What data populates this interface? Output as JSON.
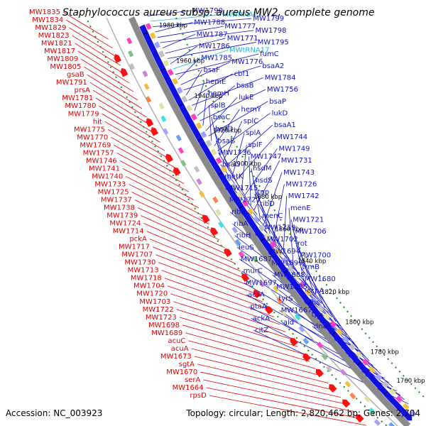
{
  "title": "Staphylococcus aureus subsp. aureus MW2, complete genome",
  "footer": {
    "accession": "Accession: NC_003923",
    "summary": "Topology: circular; Length: 2,820,462 bp; Genes: 2,704"
  },
  "colors": {
    "reverse_label": "#e00000",
    "forward_label": "#1010c8",
    "rna_label": "#20b4e0",
    "backbone": "#808080",
    "forward_arrow": "#1010e0",
    "reverse_arrow": "#ff1010",
    "dotted_ring": "#1a8a1a"
  },
  "ticks": [
    "1980 kbp",
    "1960 kbp",
    "1940 kbp",
    "1920 kbp",
    "1900 kbp",
    "1880 kbp",
    "1860 kbp",
    "1840 kbp",
    "1820 kbp",
    "1800 kbp",
    "1780 kbp",
    "1760 kbp"
  ],
  "left_labels": [
    "MW1835",
    "MW1834",
    "MW1829",
    "MW1823",
    "MW1821",
    "MW1817",
    "MW1809",
    "MW1805",
    "gsaB",
    "MW1791",
    "prsA",
    "MW1781",
    "MW1780",
    "MW1779",
    "hit",
    "MW1775",
    "MW1770",
    "MW1769",
    "MW1757",
    "MW1746",
    "MW1741",
    "MW1740",
    "MW1733",
    "MW1725",
    "MW1737",
    "MW1738",
    "MW1739",
    "MW1724",
    "MW1714",
    "pckA",
    "MW1717",
    "MW1707",
    "MW1730",
    "MW1713",
    "MW1718",
    "MW1704",
    "MW1720",
    "MW1703",
    "MW1722",
    "MW1723",
    "MW1698",
    "MW1689",
    "acuC",
    "acuA",
    "MW1673",
    "sgtA",
    "MW1670",
    "serA",
    "MW1664",
    "rpsD"
  ],
  "right_labels": [
    "MW1790",
    "MWrRNA13",
    "MW1799",
    "MW1788",
    "MW1777",
    "MW1798",
    "MW1787",
    "MW1771",
    "MW1795",
    "MW1786",
    "MWtRNA17",
    "fumC",
    "MW1785",
    "MW1776",
    "bsaA2",
    "bsaF",
    "cbf1",
    "MW1784",
    "hemE",
    "bsaB",
    "MW1756",
    "hemH",
    "lukE",
    "bsaP",
    "splB",
    "hemY",
    "lukD",
    "bsaC",
    "splC",
    "bsaA1",
    "bsaD",
    "splA",
    "MW1744",
    "bsaE",
    "splF",
    "MW1749",
    "MW1736",
    "MW1747",
    "MW1731",
    "bsaG",
    "hsdM",
    "MW1743",
    "metK",
    "hsdS",
    "MW1726",
    "MW1715",
    "tnp",
    "MW1742",
    "MW1727",
    "ribD",
    "menE",
    "ribB",
    "menC",
    "MW1721",
    "ribA",
    "MW1719",
    "MW1706",
    "ribH",
    "MW1702",
    "rot",
    "leuS",
    "MW1694",
    "MW1700",
    "MW1687",
    "MW1699",
    "trmB",
    "murC",
    "MW1688",
    "MW1680",
    "MW1697",
    "MW1685",
    "ccpA",
    "acsA",
    "tyrS",
    "fhs",
    "ptaA",
    "MW1667",
    "tpx",
    "ackA",
    "ald",
    "dnaE",
    "citZ"
  ]
}
